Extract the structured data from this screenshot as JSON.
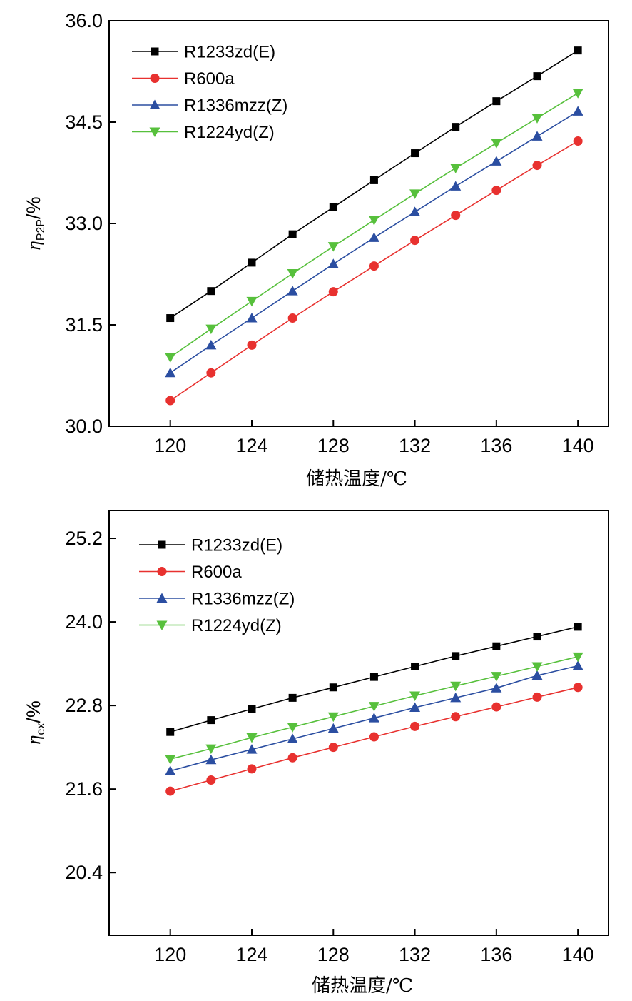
{
  "chart_data": [
    {
      "type": "line",
      "xlabel": "储热温度/℃",
      "ylabel": {
        "symbol": "η",
        "subscript": "P2P",
        "unit": "/%"
      },
      "xlim": [
        117,
        141.5
      ],
      "ylim": [
        30.0,
        36.0
      ],
      "xticks": [
        120,
        124,
        128,
        132,
        136,
        140
      ],
      "yticks": [
        30.0,
        31.5,
        33.0,
        34.5,
        36.0
      ],
      "ytick_labels": [
        "30.0",
        "31.5",
        "33.0",
        "34.5",
        "36.0"
      ],
      "legend_position": "top-left",
      "x": [
        120,
        122,
        124,
        126,
        128,
        130,
        132,
        134,
        136,
        138,
        140
      ],
      "series": [
        {
          "name": "R1233zd(E)",
          "color": "#000000",
          "marker": "square",
          "values": [
            31.6,
            32.0,
            32.42,
            32.84,
            33.24,
            33.64,
            34.04,
            34.43,
            34.81,
            35.18,
            35.56
          ]
        },
        {
          "name": "R600a",
          "color": "#e8312f",
          "marker": "circle",
          "values": [
            30.38,
            30.79,
            31.2,
            31.6,
            31.99,
            32.37,
            32.75,
            33.12,
            33.49,
            33.86,
            34.22
          ]
        },
        {
          "name": "R1336mzz(Z)",
          "color": "#2b4ea1",
          "marker": "triangle-up",
          "values": [
            30.79,
            31.2,
            31.6,
            32.0,
            32.4,
            32.79,
            33.17,
            33.55,
            33.92,
            34.29,
            34.66
          ]
        },
        {
          "name": "R1224yd(Z)",
          "color": "#57c03c",
          "marker": "triangle-down",
          "values": [
            31.02,
            31.44,
            31.85,
            32.26,
            32.66,
            33.05,
            33.44,
            33.82,
            34.19,
            34.56,
            34.93
          ]
        }
      ]
    },
    {
      "type": "line",
      "xlabel": "储热温度/℃",
      "ylabel": {
        "symbol": "η",
        "subscript": "ex",
        "unit": "/%"
      },
      "xlim": [
        117,
        141.5
      ],
      "ylim": [
        19.5,
        25.6
      ],
      "xticks": [
        120,
        124,
        128,
        132,
        136,
        140
      ],
      "yticks": [
        20.4,
        21.6,
        22.8,
        24.0,
        25.2
      ],
      "ytick_labels": [
        "20.4",
        "21.6",
        "22.8",
        "24.0",
        "25.2"
      ],
      "legend_position": "top-left",
      "x": [
        120,
        122,
        124,
        126,
        128,
        130,
        132,
        134,
        136,
        138,
        140
      ],
      "series": [
        {
          "name": "R1233zd(E)",
          "color": "#000000",
          "marker": "square",
          "values": [
            22.42,
            22.59,
            22.75,
            22.91,
            23.06,
            23.21,
            23.36,
            23.51,
            23.65,
            23.79,
            23.93
          ]
        },
        {
          "name": "R600a",
          "color": "#e8312f",
          "marker": "circle",
          "values": [
            21.57,
            21.73,
            21.89,
            22.05,
            22.2,
            22.35,
            22.5,
            22.64,
            22.78,
            22.92,
            23.06
          ]
        },
        {
          "name": "R1336mzz(Z)",
          "color": "#2b4ea1",
          "marker": "triangle-up",
          "values": [
            21.86,
            22.02,
            22.17,
            22.32,
            22.47,
            22.62,
            22.77,
            22.91,
            23.05,
            23.23,
            23.37
          ]
        },
        {
          "name": "R1224yd(Z)",
          "color": "#57c03c",
          "marker": "triangle-down",
          "values": [
            22.03,
            22.18,
            22.34,
            22.49,
            22.64,
            22.79,
            22.94,
            23.08,
            23.22,
            23.36,
            23.5
          ]
        }
      ]
    }
  ]
}
